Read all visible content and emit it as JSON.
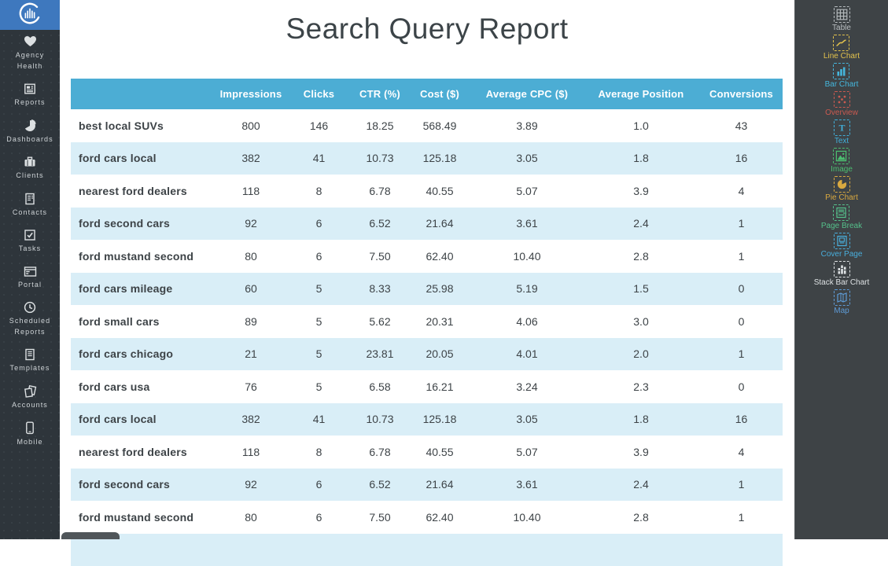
{
  "app": {
    "logo_icon": "circular-bars-logo"
  },
  "left_sidebar": {
    "items": [
      {
        "label": "Agency Health",
        "icon": "heart-icon"
      },
      {
        "label": "Reports",
        "icon": "report-icon"
      },
      {
        "label": "Dashboards",
        "icon": "pie-quarter-icon"
      },
      {
        "label": "Clients",
        "icon": "briefcase-icon"
      },
      {
        "label": "Contacts",
        "icon": "contact-card-icon"
      },
      {
        "label": "Tasks",
        "icon": "checkbox-icon"
      },
      {
        "label": "Portal",
        "icon": "browser-icon"
      },
      {
        "label": "Scheduled Reports",
        "icon": "clock-icon"
      },
      {
        "label": "Templates",
        "icon": "document-icon"
      },
      {
        "label": "Accounts",
        "icon": "pages-icon"
      },
      {
        "label": "Mobile",
        "icon": "phone-icon"
      }
    ]
  },
  "report": {
    "title": "Search Query Report",
    "table": {
      "columns": [
        "",
        "Impressions",
        "Clicks",
        "CTR (%)",
        "Cost ($)",
        "Average CPC ($)",
        "Average Position",
        "Conversions"
      ],
      "rows": [
        [
          "best local SUVs",
          "800",
          "146",
          "18.25",
          "568.49",
          "3.89",
          "1.0",
          "43"
        ],
        [
          "ford cars local",
          "382",
          "41",
          "10.73",
          "125.18",
          "3.05",
          "1.8",
          "16"
        ],
        [
          "nearest ford dealers",
          "118",
          "8",
          "6.78",
          "40.55",
          "5.07",
          "3.9",
          "4"
        ],
        [
          "ford second cars",
          "92",
          "6",
          "6.52",
          "21.64",
          "3.61",
          "2.4",
          "1"
        ],
        [
          "ford mustand second",
          "80",
          "6",
          "7.50",
          "62.40",
          "10.40",
          "2.8",
          "1"
        ],
        [
          "ford cars mileage",
          "60",
          "5",
          "8.33",
          "25.98",
          "5.19",
          "1.5",
          "0"
        ],
        [
          "ford small cars",
          "89",
          "5",
          "5.62",
          "20.31",
          "4.06",
          "3.0",
          "0"
        ],
        [
          "ford cars chicago",
          "21",
          "5",
          "23.81",
          "20.05",
          "4.01",
          "2.0",
          "1"
        ],
        [
          "ford cars usa",
          "76",
          "5",
          "6.58",
          "16.21",
          "3.24",
          "2.3",
          "0"
        ],
        [
          "ford cars local",
          "382",
          "41",
          "10.73",
          "125.18",
          "3.05",
          "1.8",
          "16"
        ],
        [
          "nearest ford dealers",
          "118",
          "8",
          "6.78",
          "40.55",
          "5.07",
          "3.9",
          "4"
        ],
        [
          "ford second cars",
          "92",
          "6",
          "6.52",
          "21.64",
          "3.61",
          "2.4",
          "1"
        ],
        [
          "ford mustand second",
          "80",
          "6",
          "7.50",
          "62.40",
          "10.40",
          "2.8",
          "1"
        ],
        [
          "",
          "",
          "",
          "",
          "",
          "",
          "",
          ""
        ]
      ]
    }
  },
  "widget_palette": {
    "items": [
      {
        "label": "Table",
        "icon": "table-grid-icon",
        "color": "#b9bec1"
      },
      {
        "label": "Line Chart",
        "icon": "line-chart-icon",
        "color": "#e2c24d"
      },
      {
        "label": "Bar Chart",
        "icon": "bar-chart-icon",
        "color": "#45b6dc"
      },
      {
        "label": "Overview",
        "icon": "overview-dots-icon",
        "color": "#cb5a50"
      },
      {
        "label": "Text",
        "icon": "text-icon",
        "color": "#41aed8"
      },
      {
        "label": "Image",
        "icon": "image-icon",
        "color": "#4cbe70"
      },
      {
        "label": "Pie Chart",
        "icon": "pie-chart-icon",
        "color": "#d9a940"
      },
      {
        "label": "Page Break",
        "icon": "page-break-icon",
        "color": "#55c08b"
      },
      {
        "label": "Cover Page",
        "icon": "cover-page-icon",
        "color": "#49aedc"
      },
      {
        "label": "Stack Bar Chart",
        "icon": "stack-bar-chart-icon",
        "color": "#dde1e3"
      },
      {
        "label": "Map",
        "icon": "map-icon",
        "color": "#5e9bd6"
      }
    ]
  },
  "colors": {
    "header_blue": "#4cadd4",
    "row_stripe": "#d9eef7",
    "logo_blue": "#3e78be",
    "sidebar_dark": "#2e353b",
    "panel_dark": "#3e4346",
    "text_dark": "#3d4347"
  }
}
